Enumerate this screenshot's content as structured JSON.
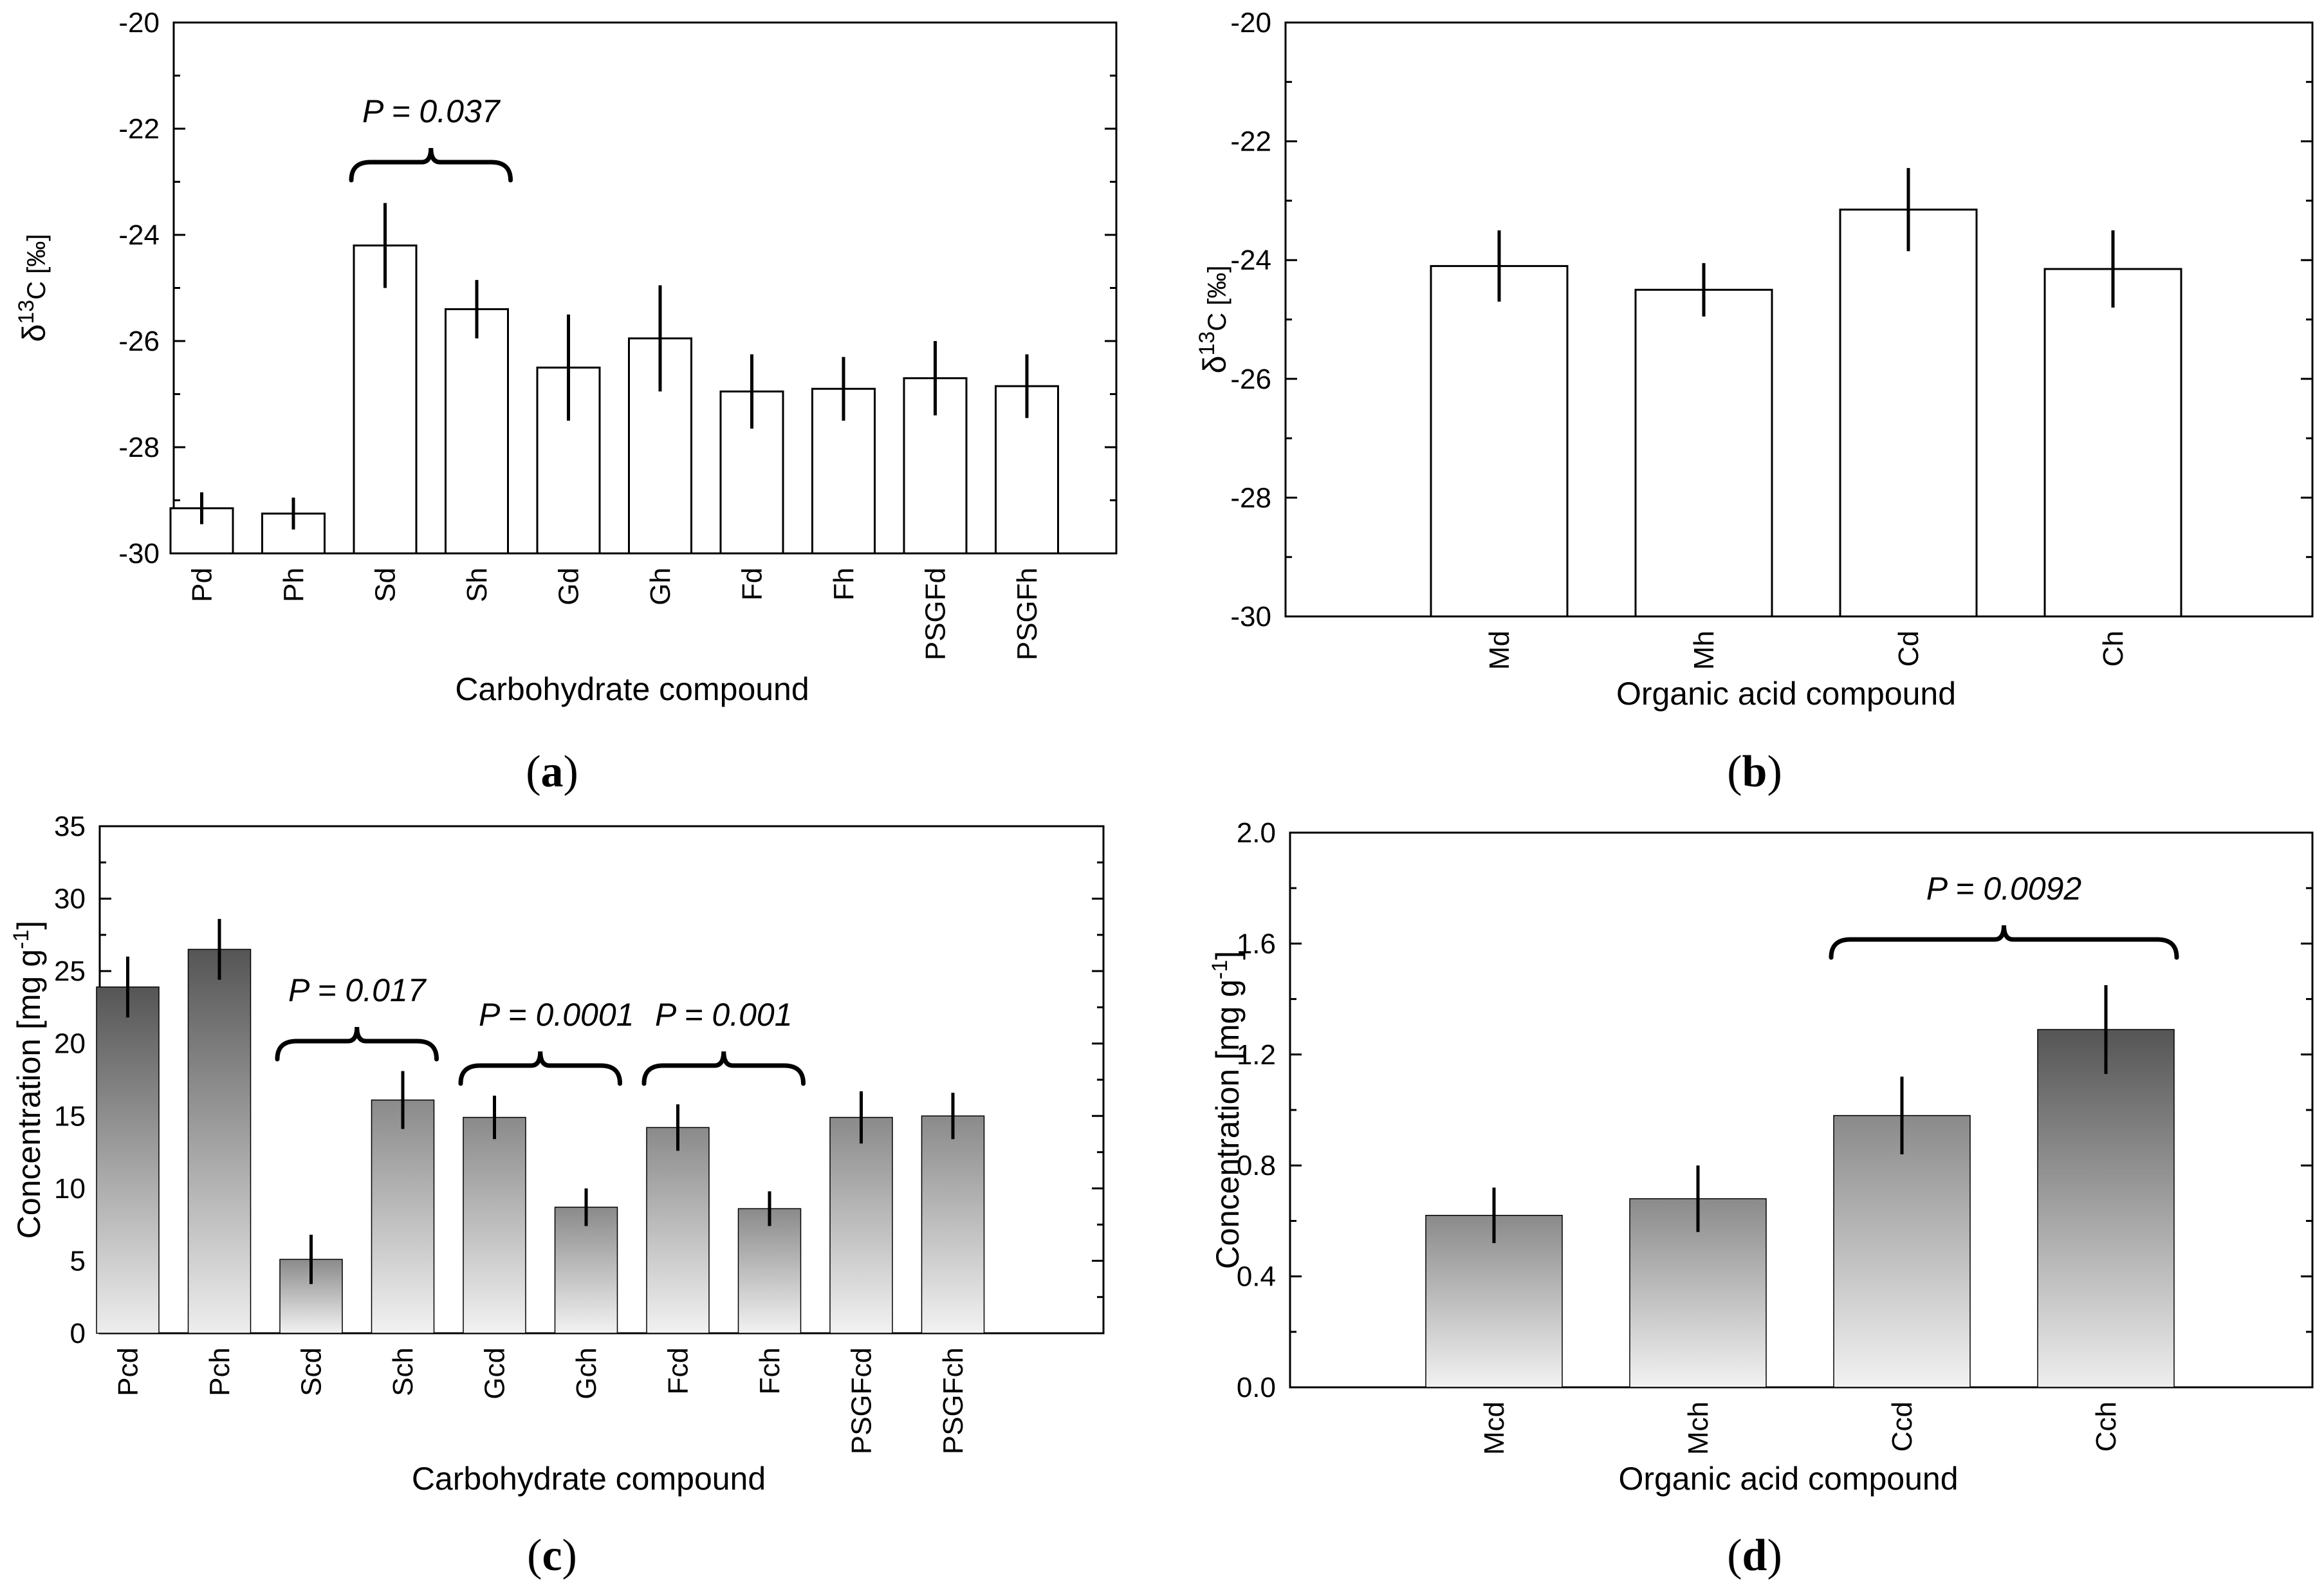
{
  "chart_data": [
    {
      "id": "a",
      "type": "bar",
      "caption": "a",
      "title": "",
      "xlabel": "Carbohydrate compound",
      "ylabel_main": "δ",
      "ylabel_sup": "13",
      "ylabel_rest": "C [‰]",
      "ylim": [
        -30,
        -20
      ],
      "yticks": [
        -30,
        -28,
        -26,
        -24,
        -22,
        -20
      ],
      "ytick_labels": [
        "-30",
        "-28",
        "-26",
        "-24",
        "-22",
        "-20"
      ],
      "bar_style": "white",
      "categories": [
        "Pd",
        "Ph",
        "Sd",
        "Sh",
        "Gd",
        "Gh",
        "Fd",
        "Fh",
        "PSGFd",
        "PSGFh"
      ],
      "values": [
        -29.15,
        -29.25,
        -24.2,
        -25.4,
        -26.5,
        -25.95,
        -26.95,
        -26.9,
        -26.7,
        -26.85
      ],
      "errors": [
        0.3,
        0.3,
        0.8,
        0.55,
        1.0,
        1.0,
        0.7,
        0.6,
        0.7,
        0.6
      ],
      "annotations": [
        {
          "label": "P = 0.037",
          "from": 2,
          "to": 3
        }
      ]
    },
    {
      "id": "b",
      "type": "bar",
      "caption": "b",
      "title": "",
      "xlabel": "Organic acid compound",
      "ylabel_main": "δ",
      "ylabel_sup": "13",
      "ylabel_rest": "C [‰]",
      "ylim": [
        -30,
        -20
      ],
      "yticks": [
        -30,
        -28,
        -26,
        -24,
        -22,
        -20
      ],
      "ytick_labels": [
        "-30",
        "-28",
        "-26",
        "-24",
        "-22",
        "-20"
      ],
      "bar_style": "white",
      "categories": [
        "Md",
        "Mh",
        "Cd",
        "Ch"
      ],
      "values": [
        -24.1,
        -24.5,
        -23.15,
        -24.15
      ],
      "errors": [
        0.6,
        0.45,
        0.7,
        0.65
      ],
      "annotations": []
    },
    {
      "id": "c",
      "type": "bar",
      "caption": "c",
      "title": "",
      "xlabel": "Carbohydrate compound",
      "ylabel_main": "Concentration [mg g",
      "ylabel_sup": "-1",
      "ylabel_rest": "]",
      "ylim": [
        0,
        35
      ],
      "yticks": [
        0,
        5,
        10,
        15,
        20,
        25,
        30,
        35
      ],
      "ytick_labels": [
        "0",
        "5",
        "10",
        "15",
        "20",
        "25",
        "30",
        "35"
      ],
      "bar_style": "gradient",
      "categories": [
        "Pcd",
        "Pch",
        "Scd",
        "Sch",
        "Gcd",
        "Gch",
        "Fcd",
        "Fch",
        "PSGFcd",
        "PSGFch"
      ],
      "values": [
        23.9,
        26.5,
        5.1,
        16.1,
        14.9,
        8.7,
        14.2,
        8.6,
        14.9,
        15.0
      ],
      "errors": [
        2.1,
        2.1,
        1.7,
        2.0,
        1.5,
        1.3,
        1.6,
        1.2,
        1.8,
        1.6
      ],
      "annotations": [
        {
          "label": "P = 0.017",
          "from": 2,
          "to": 3
        },
        {
          "label": "P = 0.0001",
          "from": 4,
          "to": 5
        },
        {
          "label": "P = 0.001",
          "from": 6,
          "to": 7
        }
      ]
    },
    {
      "id": "d",
      "type": "bar",
      "caption": "d",
      "title": "",
      "xlabel": "Organic acid compound",
      "ylabel_main": "Concentration [mg g",
      "ylabel_sup": "-1",
      "ylabel_rest": "]",
      "ylim": [
        0,
        2.0
      ],
      "yticks": [
        0,
        0.4,
        0.8,
        1.2,
        1.6,
        2.0
      ],
      "ytick_labels": [
        "0.0",
        "0.4",
        "0.8",
        "1.2",
        "1.6",
        "2.0"
      ],
      "bar_style": "gradient",
      "categories": [
        "Mcd",
        "Mch",
        "Ccd",
        "Cch"
      ],
      "values": [
        0.62,
        0.68,
        0.98,
        1.29
      ],
      "errors": [
        0.1,
        0.12,
        0.14,
        0.16
      ],
      "annotations": [
        {
          "label": "P = 0.0092",
          "from": 2,
          "to": 3
        }
      ]
    }
  ]
}
